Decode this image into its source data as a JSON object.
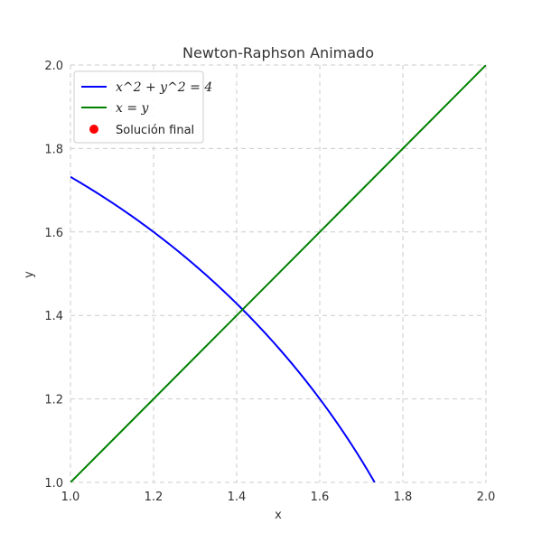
{
  "chart_data": {
    "type": "line",
    "title": "Newton-Raphson Animado",
    "xlabel": "x",
    "ylabel": "y",
    "xlim": [
      1.0,
      2.0
    ],
    "ylim": [
      1.0,
      2.0
    ],
    "x_ticks": [
      "1.0",
      "1.2",
      "1.4",
      "1.6",
      "1.8",
      "2.0"
    ],
    "y_ticks": [
      "1.0",
      "1.2",
      "1.4",
      "1.6",
      "1.8",
      "2.0"
    ],
    "grid": true,
    "legend_position": "top-left",
    "series": [
      {
        "name": "x^2 + y^2 = 4",
        "color": "#0000ff",
        "x": [
          1.0,
          1.1,
          1.2,
          1.3,
          1.4,
          1.5,
          1.6,
          1.7,
          1.732
        ],
        "y": [
          1.732,
          1.67,
          1.6,
          1.52,
          1.428,
          1.323,
          1.2,
          1.054,
          1.0
        ]
      },
      {
        "name": "x = y",
        "color": "#008000",
        "x": [
          1.0,
          2.0
        ],
        "y": [
          1.0,
          2.0
        ]
      },
      {
        "name": "Solución final",
        "color": "#ff0000",
        "marker": "point",
        "x": [],
        "y": []
      }
    ]
  }
}
